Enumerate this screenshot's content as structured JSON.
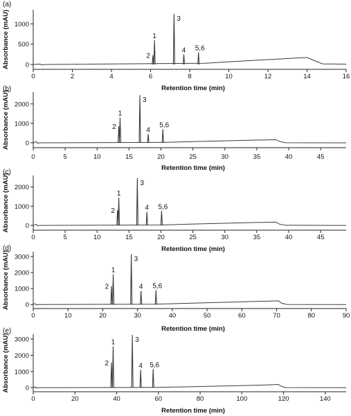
{
  "chart_data": [
    {
      "type": "line",
      "panel_label": "(a)",
      "xlabel": "Retention time (min)",
      "ylabel": "Absorbance (mAU)",
      "xlim": [
        0,
        16
      ],
      "ylim": [
        -120,
        1350
      ],
      "xticks": [
        0,
        2,
        4,
        6,
        8,
        10,
        12,
        14,
        16
      ],
      "yticks": [
        0,
        500,
        1000
      ],
      "peaks": [
        {
          "label": "2",
          "x": 6.12,
          "y": 230
        },
        {
          "label": "1",
          "x": 6.2,
          "y": 600
        },
        {
          "label": "3",
          "x": 7.2,
          "y": 1250
        },
        {
          "label": "4",
          "x": 7.7,
          "y": 250
        },
        {
          "label": "5,6",
          "x": 8.45,
          "y": 300
        }
      ],
      "baseline": [
        [
          0,
          0
        ],
        [
          0.35,
          10
        ],
        [
          0.45,
          -15
        ],
        [
          0.6,
          0
        ],
        [
          8.8,
          30
        ],
        [
          10,
          65
        ],
        [
          12,
          120
        ],
        [
          13.5,
          160
        ],
        [
          14.0,
          170
        ],
        [
          14.35,
          100
        ],
        [
          14.8,
          15
        ],
        [
          16,
          8
        ]
      ]
    },
    {
      "type": "line",
      "panel_label": "(b)",
      "xlabel": "Retention time (min)",
      "ylabel": "Absorbance (mAU)",
      "xlim": [
        0,
        49
      ],
      "ylim": [
        -250,
        2600
      ],
      "xticks": [
        0,
        5,
        10,
        15,
        20,
        25,
        30,
        35,
        40,
        45
      ],
      "yticks": [
        0,
        1000,
        2000
      ],
      "peaks": [
        {
          "label": "2",
          "x": 13.4,
          "y": 850
        },
        {
          "label": "1",
          "x": 13.6,
          "y": 1300
        },
        {
          "label": "3",
          "x": 16.7,
          "y": 2450
        },
        {
          "label": "4",
          "x": 18.0,
          "y": 450
        },
        {
          "label": "5,6",
          "x": 20.3,
          "y": 700
        }
      ],
      "baseline": [
        [
          0,
          0
        ],
        [
          0.5,
          60
        ],
        [
          0.7,
          -30
        ],
        [
          0.9,
          0
        ],
        [
          20,
          20
        ],
        [
          25,
          60
        ],
        [
          30,
          100
        ],
        [
          35,
          140
        ],
        [
          38,
          160
        ],
        [
          38.7,
          60
        ],
        [
          39.5,
          5
        ],
        [
          49,
          0
        ]
      ]
    },
    {
      "type": "line",
      "panel_label": "(c)",
      "xlabel": "Retention time (min)",
      "ylabel": "Absorbance (mAU)",
      "xlim": [
        0,
        49
      ],
      "ylim": [
        -250,
        2600
      ],
      "xticks": [
        0,
        5,
        10,
        15,
        20,
        25,
        30,
        35,
        40,
        45
      ],
      "yticks": [
        0,
        1000,
        2000
      ],
      "peaks": [
        {
          "label": "2",
          "x": 13.2,
          "y": 800
        },
        {
          "label": "1",
          "x": 13.4,
          "y": 1450
        },
        {
          "label": "3",
          "x": 16.3,
          "y": 2450
        },
        {
          "label": "4",
          "x": 17.8,
          "y": 700
        },
        {
          "label": "5,6",
          "x": 20.1,
          "y": 750
        }
      ],
      "baseline": [
        [
          0,
          0
        ],
        [
          0.5,
          60
        ],
        [
          0.7,
          -30
        ],
        [
          0.9,
          0
        ],
        [
          20,
          20
        ],
        [
          25,
          70
        ],
        [
          30,
          110
        ],
        [
          35,
          150
        ],
        [
          38,
          170
        ],
        [
          38.6,
          60
        ],
        [
          39.5,
          5
        ],
        [
          49,
          0
        ]
      ]
    },
    {
      "type": "line",
      "panel_label": "(d)",
      "xlabel": "Retention time (min)",
      "ylabel": "Absorbance (mAU)",
      "xlim": [
        0,
        90
      ],
      "ylim": [
        -250,
        3300
      ],
      "xticks": [
        0,
        10,
        20,
        30,
        40,
        50,
        60,
        70,
        80,
        90
      ],
      "yticks": [
        0,
        1000,
        2000,
        3000
      ],
      "peaks": [
        {
          "label": "2",
          "x": 22.5,
          "y": 1150
        },
        {
          "label": "1",
          "x": 23.0,
          "y": 1900
        },
        {
          "label": "3",
          "x": 28.2,
          "y": 3150
        },
        {
          "label": "4",
          "x": 31.0,
          "y": 850
        },
        {
          "label": "5,6",
          "x": 35.3,
          "y": 900
        }
      ],
      "baseline": [
        [
          0,
          0
        ],
        [
          0.5,
          60
        ],
        [
          0.9,
          -30
        ],
        [
          1.3,
          0
        ],
        [
          35,
          20
        ],
        [
          45,
          80
        ],
        [
          55,
          140
        ],
        [
          65,
          200
        ],
        [
          70.5,
          230
        ],
        [
          71.5,
          80
        ],
        [
          73,
          5
        ],
        [
          90,
          0
        ]
      ]
    },
    {
      "type": "line",
      "panel_label": "(e)",
      "xlabel": "Retention time (min)",
      "ylabel": "Absorbance (mAU)",
      "xlim": [
        0,
        150
      ],
      "ylim": [
        -250,
        3300
      ],
      "xticks": [
        0,
        20,
        40,
        60,
        80,
        100,
        120,
        140
      ],
      "yticks": [
        0,
        1000,
        2000,
        3000
      ],
      "peaks": [
        {
          "label": "2",
          "x": 37.5,
          "y": 1550
        },
        {
          "label": "1",
          "x": 38.3,
          "y": 2550
        },
        {
          "label": "3",
          "x": 47.5,
          "y": 3250
        },
        {
          "label": "4",
          "x": 51.5,
          "y": 1100
        },
        {
          "label": "5,6",
          "x": 57.5,
          "y": 1150
        }
      ],
      "baseline": [
        [
          0,
          0
        ],
        [
          1.0,
          60
        ],
        [
          1.5,
          -30
        ],
        [
          2.2,
          0
        ],
        [
          60,
          20
        ],
        [
          80,
          70
        ],
        [
          100,
          130
        ],
        [
          110,
          160
        ],
        [
          117.5,
          200
        ],
        [
          119,
          80
        ],
        [
          121,
          5
        ],
        [
          150,
          0
        ]
      ]
    }
  ]
}
